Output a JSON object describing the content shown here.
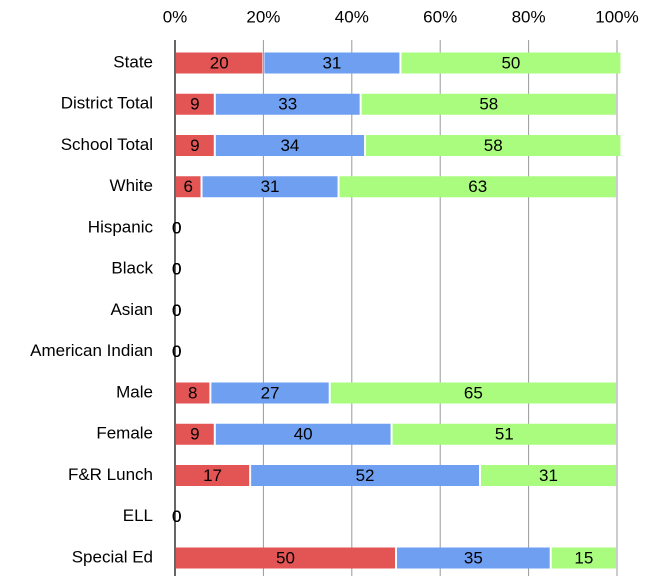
{
  "chart_data": {
    "type": "bar",
    "orientation": "horizontal",
    "stacked": true,
    "categories": [
      "State",
      "District Total",
      "School Total",
      "White",
      "Hispanic",
      "Black",
      "Asian",
      "American Indian",
      "Male",
      "Female",
      "F&R Lunch",
      "ELL",
      "Special Ed"
    ],
    "series": [
      {
        "color": "#e35555",
        "values": [
          20,
          9,
          9,
          6,
          0,
          0,
          0,
          0,
          8,
          9,
          17,
          0,
          50
        ]
      },
      {
        "color": "#6e9ff0",
        "values": [
          31,
          33,
          34,
          31,
          0,
          0,
          0,
          0,
          27,
          40,
          52,
          0,
          35
        ]
      },
      {
        "color": "#a9fc7e",
        "values": [
          50,
          58,
          58,
          63,
          0,
          0,
          0,
          0,
          65,
          51,
          31,
          0,
          15
        ]
      }
    ],
    "xlim": [
      0,
      100
    ],
    "xticks": [
      {
        "value": 0,
        "label": "0%"
      },
      {
        "value": 20,
        "label": "20%"
      },
      {
        "value": 40,
        "label": "40%"
      },
      {
        "value": 60,
        "label": "60%"
      },
      {
        "value": 80,
        "label": "80%"
      },
      {
        "value": 100,
        "label": "100%"
      }
    ],
    "grid": true
  }
}
